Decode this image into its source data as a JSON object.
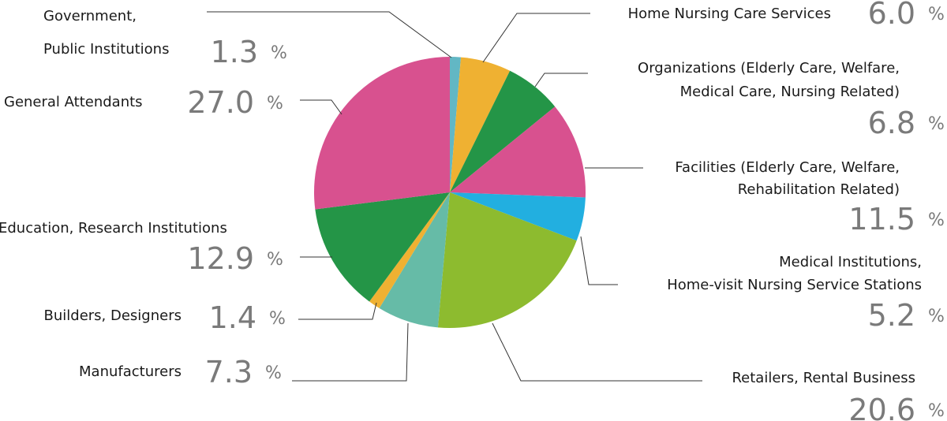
{
  "chart_data": {
    "type": "pie",
    "categories": [
      "Government,\nPublic Institutions",
      "Home Nursing Care Services",
      "Organizations (Elderly Care, Welfare,\nMedical Care, Nursing Related)",
      "Facilities (Elderly Care, Welfare,\nRehabilitation Related)",
      "Medical Institutions,\nHome-visit Nursing Service Stations",
      "Retailers, Rental Business",
      "Manufacturers",
      "Builders, Designers",
      "Education, Research Institutions",
      "General Attendants"
    ],
    "values": [
      1.3,
      6.0,
      6.8,
      11.5,
      5.2,
      20.6,
      7.3,
      1.4,
      12.9,
      27.0
    ],
    "value_labels": [
      "1.3",
      "6.0",
      "6.8",
      "11.5",
      "5.2",
      "20.6",
      "7.3",
      "1.4",
      "12.9",
      "27.0"
    ],
    "unit": "%",
    "colors": [
      "#62b7c4",
      "#efb132",
      "#249547",
      "#d8518f",
      "#22afe0",
      "#8dbb2f",
      "#66bba7",
      "#efb132",
      "#249547",
      "#d8518f"
    ]
  }
}
